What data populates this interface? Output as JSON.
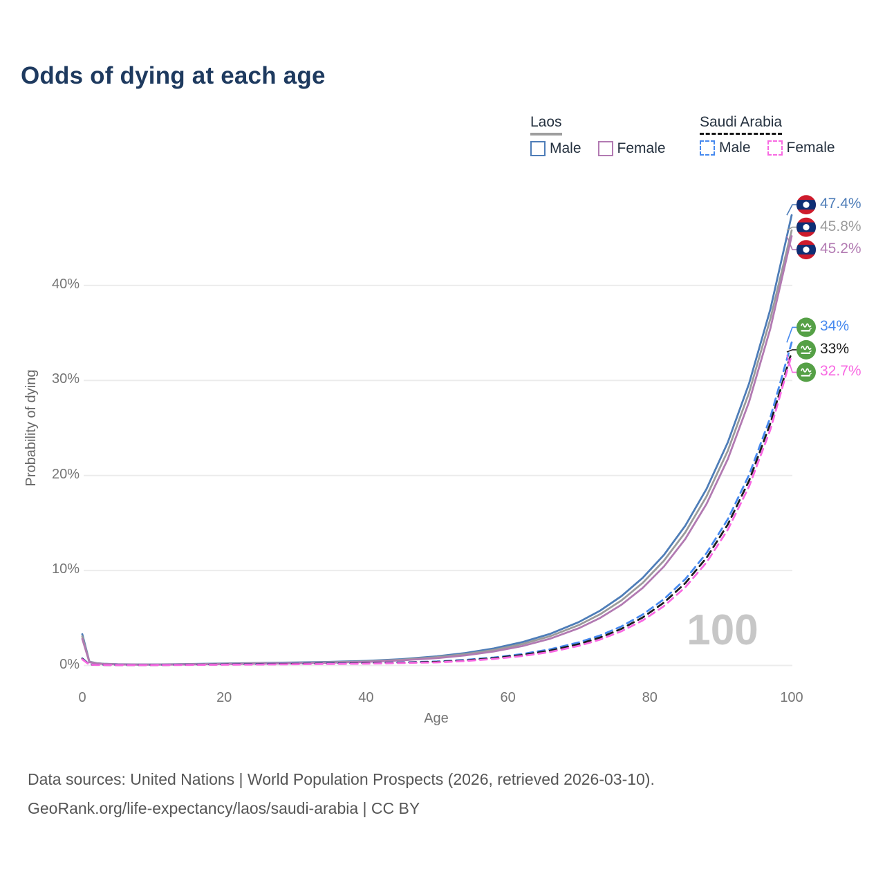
{
  "page": {
    "title": "Odds of dying at each age",
    "watermark": "100",
    "title_color": "#1e3a5f",
    "background": "#ffffff"
  },
  "legend": {
    "groups": [
      {
        "name": "Laos",
        "line_style": "solid",
        "underline_color": "#9e9e9e",
        "items": [
          {
            "label": "Male",
            "color": "#4e7db8",
            "dashed": false
          },
          {
            "label": "Female",
            "color": "#b27ab2",
            "dashed": false
          }
        ]
      },
      {
        "name": "Saudi Arabia",
        "line_style": "dashed",
        "underline_color": "#161616",
        "items": [
          {
            "label": "Male",
            "color": "#4689ef",
            "dashed": true
          },
          {
            "label": "Female",
            "color": "#f868e2",
            "dashed": true
          }
        ]
      }
    ]
  },
  "chart_data": {
    "type": "line",
    "title": "Odds of dying at each age",
    "xlabel": "Age",
    "ylabel": "Probability of dying",
    "xlim": [
      0,
      100
    ],
    "ylim_percent": [
      0,
      48
    ],
    "grid": "horizontal-only",
    "grid_color": "#ececec",
    "tick_color": "#757575",
    "x_ticks": [
      0,
      20,
      40,
      60,
      80,
      100
    ],
    "y_ticks_percent": [
      0,
      10,
      20,
      30,
      40
    ],
    "y_tick_labels": [
      "0%",
      "10%",
      "20%",
      "30%",
      "40%"
    ],
    "x_tick_labels": [
      "0",
      "20",
      "40",
      "60",
      "80",
      "100"
    ],
    "ages": [
      0,
      1,
      2,
      3,
      5,
      8,
      10,
      15,
      20,
      25,
      30,
      35,
      40,
      45,
      50,
      54,
      58,
      62,
      66,
      70,
      73,
      76,
      79,
      82,
      85,
      88,
      91,
      94,
      97,
      100
    ],
    "series": [
      {
        "name": "Laos Male",
        "country": "Laos",
        "sex": "Male",
        "flag": "laos",
        "color": "#4e7db8",
        "dash": "solid",
        "end_label": "47.4%",
        "end_value_percent": 47.4,
        "values_percent": [
          3.3,
          0.4,
          0.25,
          0.18,
          0.13,
          0.11,
          0.11,
          0.15,
          0.21,
          0.26,
          0.31,
          0.38,
          0.48,
          0.66,
          0.96,
          1.31,
          1.79,
          2.45,
          3.34,
          4.57,
          5.77,
          7.3,
          9.22,
          11.64,
          14.71,
          18.59,
          23.49,
          29.68,
          37.5,
          47.4
        ]
      },
      {
        "name": "Laos Both sexes",
        "country": "Laos",
        "sex": "Both",
        "flag": "laos",
        "color": "#9b9b9b",
        "dash": "solid",
        "end_label": "45.8%",
        "end_value_percent": 45.8,
        "values_percent": [
          3.05,
          0.38,
          0.23,
          0.17,
          0.12,
          0.1,
          0.1,
          0.13,
          0.18,
          0.23,
          0.27,
          0.34,
          0.43,
          0.6,
          0.87,
          1.19,
          1.63,
          2.25,
          3.09,
          4.25,
          5.39,
          6.85,
          8.69,
          11.03,
          14.01,
          17.8,
          22.61,
          28.72,
          36.49,
          45.8
        ]
      },
      {
        "name": "Laos Female",
        "country": "Laos",
        "sex": "Female",
        "flag": "laos",
        "color": "#b27ab2",
        "dash": "solid",
        "end_label": "45.2%",
        "end_value_percent": 45.2,
        "values_percent": [
          2.8,
          0.35,
          0.2,
          0.15,
          0.11,
          0.09,
          0.09,
          0.11,
          0.15,
          0.19,
          0.23,
          0.29,
          0.38,
          0.54,
          0.77,
          1.06,
          1.47,
          2.04,
          2.83,
          3.92,
          5.01,
          6.39,
          8.16,
          10.42,
          13.31,
          17.01,
          21.73,
          27.75,
          35.47,
          45.2
        ]
      },
      {
        "name": "Saudi Arabia Male",
        "country": "Saudi Arabia",
        "sex": "Male",
        "flag": "saudi",
        "color": "#4689ef",
        "dash": "dashed",
        "end_label": "34%",
        "end_value_percent": 34,
        "values_percent": [
          0.75,
          0.1,
          0.07,
          0.06,
          0.05,
          0.05,
          0.05,
          0.08,
          0.12,
          0.15,
          0.18,
          0.22,
          0.27,
          0.33,
          0.42,
          0.59,
          0.84,
          1.2,
          1.71,
          2.43,
          3.16,
          4.11,
          5.36,
          6.98,
          9.08,
          11.83,
          15.4,
          20.06,
          26.12,
          34.0
        ]
      },
      {
        "name": "Saudi Arabia Both sexes",
        "country": "Saudi Arabia",
        "sex": "Both",
        "flag": "saudi",
        "color": "#1d1d1d",
        "dash": "dashed",
        "end_label": "33%",
        "end_value_percent": 33,
        "values_percent": [
          0.7,
          0.095,
          0.065,
          0.055,
          0.045,
          0.045,
          0.045,
          0.07,
          0.1,
          0.13,
          0.16,
          0.19,
          0.24,
          0.3,
          0.38,
          0.53,
          0.77,
          1.1,
          1.57,
          2.25,
          2.95,
          3.86,
          5.05,
          6.62,
          8.66,
          11.34,
          14.85,
          19.45,
          25.48,
          33.0
        ]
      },
      {
        "name": "Saudi Arabia Female",
        "country": "Saudi Arabia",
        "sex": "Female",
        "flag": "saudi",
        "color": "#f868e2",
        "dash": "dashed",
        "end_label": "32.7%",
        "end_value_percent": 32.7,
        "values_percent": [
          0.65,
          0.09,
          0.06,
          0.05,
          0.04,
          0.04,
          0.04,
          0.06,
          0.08,
          0.1,
          0.13,
          0.16,
          0.2,
          0.26,
          0.33,
          0.47,
          0.69,
          0.99,
          1.43,
          2.07,
          2.73,
          3.6,
          4.74,
          6.25,
          8.23,
          10.85,
          14.3,
          18.84,
          24.83,
          32.7
        ]
      }
    ],
    "flags": {
      "laos": {
        "red": "#ce1b2c",
        "blue": "#0e2f75",
        "disc": "#ffffff"
      },
      "saudi": {
        "green": "#55a046",
        "emblem": "#ffffff"
      }
    },
    "legend_position": "top-right",
    "annotation_watermark": "100"
  },
  "footer": {
    "line1": "Data sources: United Nations | World Population Prospects (2026, retrieved 2026-03-10).",
    "line2": "GeoRank.org/life-expectancy/laos/saudi-arabia | CC BY"
  }
}
